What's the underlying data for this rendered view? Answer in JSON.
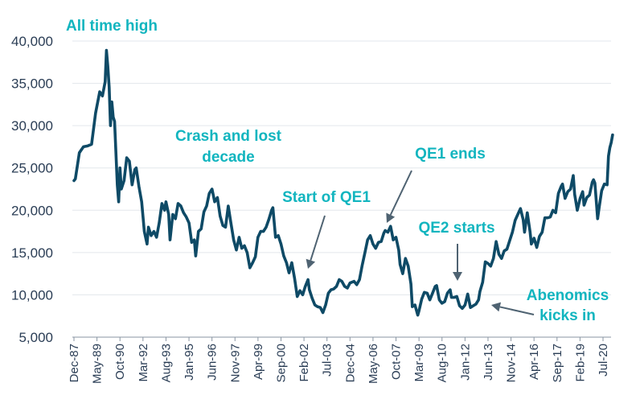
{
  "chart_data": {
    "type": "line",
    "title": "",
    "xlabel": "",
    "ylabel": "",
    "ylim": [
      5000,
      40000
    ],
    "y_ticks": [
      5000,
      10000,
      15000,
      20000,
      25000,
      30000,
      35000,
      40000
    ],
    "y_tick_labels": [
      "5,000",
      "10,000",
      "15,000",
      "20,000",
      "25,000",
      "30,000",
      "35,000",
      "40,000"
    ],
    "x_tick_labels": [
      "Dec-87",
      "May-89",
      "Oct-90",
      "Mar-92",
      "Aug-93",
      "Jan-95",
      "Jun-96",
      "Nov-97",
      "Apr-99",
      "Sep-00",
      "Feb-02",
      "Jul-03",
      "Dec-04",
      "May-06",
      "Oct-07",
      "Mar-09",
      "Aug-10",
      "Jan-12",
      "Jun-13",
      "Nov-14",
      "Apr-16",
      "Sep-17",
      "Feb-19",
      "Jul-20"
    ],
    "grid": true,
    "legend": "none",
    "line_color": "#0e4a66",
    "annotation_color": "#12b5bf",
    "arrow_color": "#4f6372",
    "series": [
      {
        "values": [
          [
            "1987-12-01",
            23500
          ],
          [
            "1988-01-01",
            23700
          ],
          [
            "1988-04-01",
            26800
          ],
          [
            "1988-07-01",
            27500
          ],
          [
            "1988-10-01",
            27600
          ],
          [
            "1989-01-01",
            27800
          ],
          [
            "1989-04-01",
            31500
          ],
          [
            "1989-07-01",
            34000
          ],
          [
            "1989-09-01",
            33500
          ],
          [
            "1989-11-01",
            35200
          ],
          [
            "1989-12-01",
            38900
          ],
          [
            "1990-01-01",
            37000
          ],
          [
            "1990-02-01",
            34500
          ],
          [
            "1990-03-01",
            30000
          ],
          [
            "1990-04-01",
            32800
          ],
          [
            "1990-05-01",
            31000
          ],
          [
            "1990-06-01",
            30500
          ],
          [
            "1990-08-01",
            23000
          ],
          [
            "1990-09-01",
            21000
          ],
          [
            "1990-10-01",
            25000
          ],
          [
            "1990-11-01",
            22500
          ],
          [
            "1991-01-01",
            23500
          ],
          [
            "1991-03-01",
            26200
          ],
          [
            "1991-05-01",
            25800
          ],
          [
            "1991-07-01",
            23000
          ],
          [
            "1991-09-01",
            24800
          ],
          [
            "1991-10-01",
            25000
          ],
          [
            "1991-12-01",
            22800
          ],
          [
            "1992-02-01",
            21000
          ],
          [
            "1992-04-01",
            17500
          ],
          [
            "1992-06-01",
            16000
          ],
          [
            "1992-07-01",
            18000
          ],
          [
            "1992-09-01",
            17000
          ],
          [
            "1992-11-01",
            17500
          ],
          [
            "1993-01-01",
            16800
          ],
          [
            "1993-03-01",
            18500
          ],
          [
            "1993-05-01",
            20800
          ],
          [
            "1993-07-01",
            20000
          ],
          [
            "1993-08-01",
            21000
          ],
          [
            "1993-10-01",
            19500
          ],
          [
            "1993-11-01",
            16500
          ],
          [
            "1994-01-01",
            19500
          ],
          [
            "1994-03-01",
            19000
          ],
          [
            "1994-05-01",
            20800
          ],
          [
            "1994-07-01",
            20500
          ],
          [
            "1994-09-01",
            19700
          ],
          [
            "1994-11-01",
            19200
          ],
          [
            "1995-01-01",
            18500
          ],
          [
            "1995-03-01",
            16200
          ],
          [
            "1995-05-01",
            16500
          ],
          [
            "1995-06-01",
            14600
          ],
          [
            "1995-08-01",
            17500
          ],
          [
            "1995-10-01",
            17800
          ],
          [
            "1995-12-01",
            19800
          ],
          [
            "1996-02-01",
            20500
          ],
          [
            "1996-04-01",
            22000
          ],
          [
            "1996-06-01",
            22500
          ],
          [
            "1996-08-01",
            21000
          ],
          [
            "1996-10-01",
            21500
          ],
          [
            "1996-12-01",
            19300
          ],
          [
            "1997-02-01",
            18200
          ],
          [
            "1997-04-01",
            18000
          ],
          [
            "1997-06-01",
            20500
          ],
          [
            "1997-08-01",
            18500
          ],
          [
            "1997-10-01",
            16500
          ],
          [
            "1997-12-01",
            15300
          ],
          [
            "1998-02-01",
            16800
          ],
          [
            "1998-04-01",
            15500
          ],
          [
            "1998-06-01",
            15800
          ],
          [
            "1998-08-01",
            15000
          ],
          [
            "1998-10-01",
            13200
          ],
          [
            "1998-12-01",
            13800
          ],
          [
            "1999-02-01",
            14500
          ],
          [
            "1999-04-01",
            16800
          ],
          [
            "1999-06-01",
            17500
          ],
          [
            "1999-08-01",
            17500
          ],
          [
            "1999-10-01",
            18000
          ],
          [
            "1999-12-01",
            18900
          ],
          [
            "2000-02-01",
            20000
          ],
          [
            "2000-03-01",
            20300
          ],
          [
            "2000-05-01",
            16800
          ],
          [
            "2000-07-01",
            17000
          ],
          [
            "2000-09-01",
            16000
          ],
          [
            "2000-11-01",
            14600
          ],
          [
            "2001-01-01",
            13800
          ],
          [
            "2001-03-01",
            12600
          ],
          [
            "2001-05-01",
            13800
          ],
          [
            "2001-07-01",
            12000
          ],
          [
            "2001-09-01",
            9800
          ],
          [
            "2001-11-01",
            10500
          ],
          [
            "2002-01-01",
            10000
          ],
          [
            "2002-03-01",
            11000
          ],
          [
            "2002-05-01",
            11800
          ],
          [
            "2002-06-01",
            10600
          ],
          [
            "2002-08-01",
            9600
          ],
          [
            "2002-10-01",
            8800
          ],
          [
            "2002-12-01",
            8600
          ],
          [
            "2003-02-01",
            8500
          ],
          [
            "2003-04-01",
            7900
          ],
          [
            "2003-06-01",
            8800
          ],
          [
            "2003-08-01",
            10200
          ],
          [
            "2003-10-01",
            10600
          ],
          [
            "2003-12-01",
            10700
          ],
          [
            "2004-02-01",
            11000
          ],
          [
            "2004-04-01",
            11800
          ],
          [
            "2004-06-01",
            11600
          ],
          [
            "2004-08-01",
            11000
          ],
          [
            "2004-10-01",
            10800
          ],
          [
            "2004-12-01",
            11400
          ],
          [
            "2005-03-01",
            11600
          ],
          [
            "2005-05-01",
            11200
          ],
          [
            "2005-07-01",
            11800
          ],
          [
            "2005-09-01",
            13500
          ],
          [
            "2005-11-01",
            15000
          ],
          [
            "2006-01-01",
            16500
          ],
          [
            "2006-03-01",
            17000
          ],
          [
            "2006-05-01",
            16000
          ],
          [
            "2006-07-01",
            15500
          ],
          [
            "2006-09-01",
            16200
          ],
          [
            "2006-11-01",
            16300
          ],
          [
            "2007-01-01",
            17300
          ],
          [
            "2007-02-01",
            17600
          ],
          [
            "2007-04-01",
            17400
          ],
          [
            "2007-06-01",
            18100
          ],
          [
            "2007-08-01",
            16500
          ],
          [
            "2007-10-01",
            16800
          ],
          [
            "2007-12-01",
            15300
          ],
          [
            "2008-01-01",
            13600
          ],
          [
            "2008-03-01",
            12500
          ],
          [
            "2008-05-01",
            14300
          ],
          [
            "2008-07-01",
            13400
          ],
          [
            "2008-09-01",
            11300
          ],
          [
            "2008-10-01",
            8600
          ],
          [
            "2008-12-01",
            8800
          ],
          [
            "2009-02-01",
            7600
          ],
          [
            "2009-03-01",
            8100
          ],
          [
            "2009-05-01",
            9500
          ],
          [
            "2009-07-01",
            10300
          ],
          [
            "2009-09-01",
            10200
          ],
          [
            "2009-11-01",
            9400
          ],
          [
            "2010-01-01",
            10200
          ],
          [
            "2010-03-01",
            11000
          ],
          [
            "2010-04-01",
            11100
          ],
          [
            "2010-06-01",
            9400
          ],
          [
            "2010-08-01",
            9000
          ],
          [
            "2010-10-01",
            9200
          ],
          [
            "2010-12-01",
            10200
          ],
          [
            "2011-02-01",
            10600
          ],
          [
            "2011-03-01",
            9700
          ],
          [
            "2011-05-01",
            9700
          ],
          [
            "2011-07-01",
            9800
          ],
          [
            "2011-09-01",
            8700
          ],
          [
            "2011-11-01",
            8400
          ],
          [
            "2012-01-01",
            8800
          ],
          [
            "2012-03-01",
            10100
          ],
          [
            "2012-05-01",
            8500
          ],
          [
            "2012-07-01",
            8700
          ],
          [
            "2012-09-01",
            8900
          ],
          [
            "2012-11-01",
            9400
          ],
          [
            "2012-12-01",
            10400
          ],
          [
            "2013-02-01",
            11500
          ],
          [
            "2013-04-01",
            13900
          ],
          [
            "2013-06-01",
            13700
          ],
          [
            "2013-08-01",
            13400
          ],
          [
            "2013-10-01",
            14300
          ],
          [
            "2013-12-01",
            16300
          ],
          [
            "2014-02-01",
            14800
          ],
          [
            "2014-04-01",
            14300
          ],
          [
            "2014-06-01",
            15200
          ],
          [
            "2014-08-01",
            15400
          ],
          [
            "2014-10-01",
            16400
          ],
          [
            "2014-12-01",
            17400
          ],
          [
            "2015-02-01",
            18800
          ],
          [
            "2015-04-01",
            19500
          ],
          [
            "2015-06-01",
            20200
          ],
          [
            "2015-08-01",
            18900
          ],
          [
            "2015-09-01",
            17400
          ],
          [
            "2015-11-01",
            19700
          ],
          [
            "2016-01-01",
            17500
          ],
          [
            "2016-02-01",
            16000
          ],
          [
            "2016-04-01",
            16700
          ],
          [
            "2016-06-01",
            15600
          ],
          [
            "2016-08-01",
            16900
          ],
          [
            "2016-10-01",
            17400
          ],
          [
            "2016-12-01",
            19100
          ],
          [
            "2017-02-01",
            19100
          ],
          [
            "2017-04-01",
            19200
          ],
          [
            "2017-06-01",
            20000
          ],
          [
            "2017-08-01",
            19700
          ],
          [
            "2017-10-01",
            22000
          ],
          [
            "2017-12-01",
            22800
          ],
          [
            "2018-01-01",
            23100
          ],
          [
            "2018-03-01",
            21400
          ],
          [
            "2018-05-01",
            22200
          ],
          [
            "2018-07-01",
            22500
          ],
          [
            "2018-09-01",
            24100
          ],
          [
            "2018-10-01",
            21900
          ],
          [
            "2018-12-01",
            20000
          ],
          [
            "2019-02-01",
            21400
          ],
          [
            "2019-04-01",
            22200
          ],
          [
            "2019-05-01",
            20600
          ],
          [
            "2019-07-01",
            21500
          ],
          [
            "2019-09-01",
            21800
          ],
          [
            "2019-11-01",
            23300
          ],
          [
            "2019-12-01",
            23600
          ],
          [
            "2020-01-01",
            23200
          ],
          [
            "2020-03-01",
            19000
          ],
          [
            "2020-04-01",
            20200
          ],
          [
            "2020-06-01",
            22300
          ],
          [
            "2020-08-01",
            23100
          ],
          [
            "2020-10-01",
            23000
          ],
          [
            "2020-11-01",
            26400
          ],
          [
            "2020-12-01",
            27400
          ],
          [
            "2021-01-01",
            28000
          ],
          [
            "2021-02-01",
            28900
          ]
        ]
      }
    ],
    "annotations": [
      {
        "key": "all-time-high",
        "lines": [
          "All time high"
        ]
      },
      {
        "key": "crash-and-lost-decade",
        "lines": [
          "Crash and lost",
          "decade"
        ]
      },
      {
        "key": "start-of-qe1",
        "lines": [
          "Start of QE1"
        ]
      },
      {
        "key": "qe1-ends",
        "lines": [
          "QE1 ends"
        ]
      },
      {
        "key": "qe2-starts",
        "lines": [
          "QE2 starts"
        ]
      },
      {
        "key": "abenomics-kicks-in",
        "lines": [
          "Abenomics",
          "kicks in"
        ]
      }
    ]
  }
}
